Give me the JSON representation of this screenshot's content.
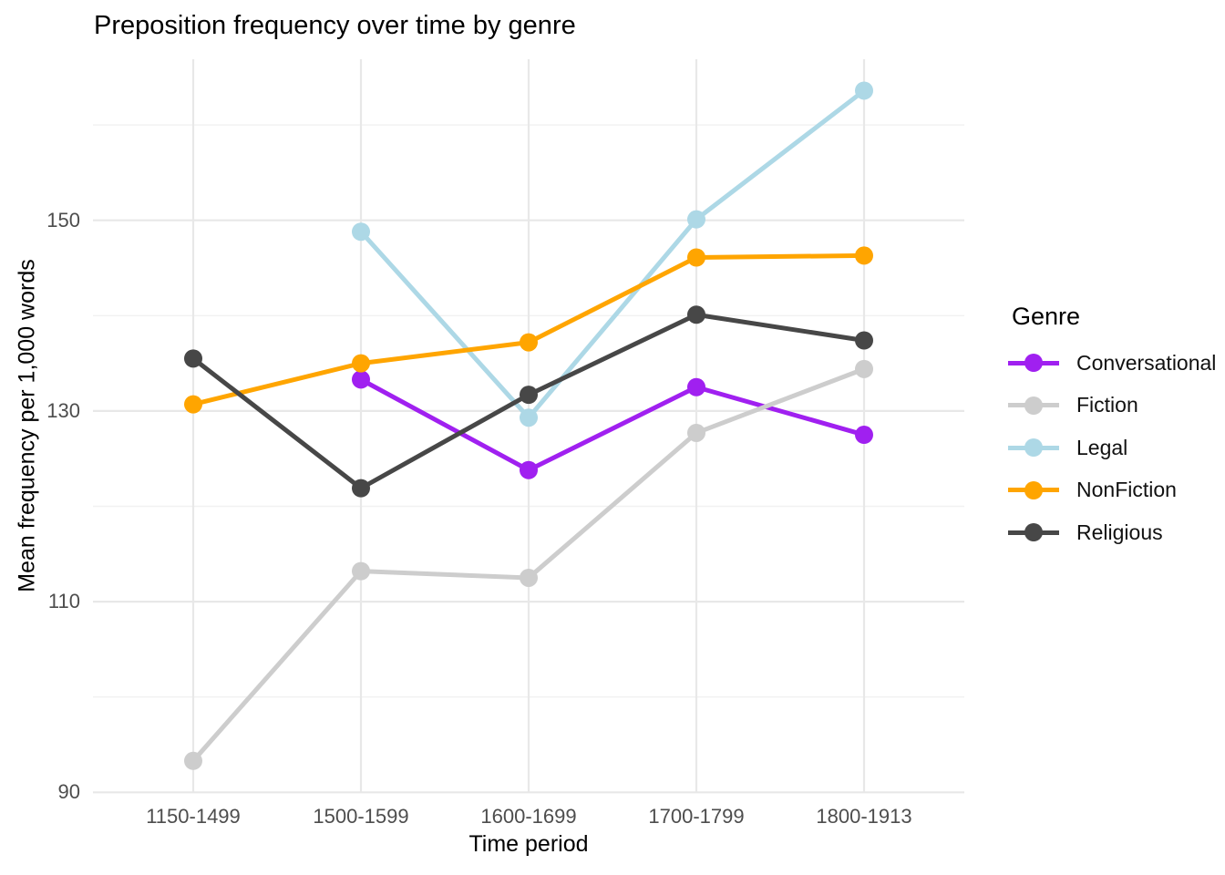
{
  "chart_data": {
    "type": "line",
    "title": "Preposition frequency over time by genre",
    "xlabel": "Time period",
    "ylabel": "Mean frequency per 1,000 words",
    "categories": [
      "1150-1499",
      "1500-1599",
      "1600-1699",
      "1700-1799",
      "1800-1913"
    ],
    "series": [
      {
        "name": "Conversational",
        "color": "#A020F0",
        "values": [
          null,
          133.3,
          123.8,
          132.5,
          127.5
        ]
      },
      {
        "name": "Fiction",
        "color": "#CDCDCD",
        "values": [
          93.3,
          113.2,
          112.5,
          127.7,
          134.4
        ]
      },
      {
        "name": "Legal",
        "color": "#ADD8E6",
        "values": [
          null,
          148.8,
          129.3,
          150.1,
          163.6
        ]
      },
      {
        "name": "NonFiction",
        "color": "#FFA500",
        "values": [
          130.7,
          135.0,
          137.2,
          146.1,
          146.3
        ]
      },
      {
        "name": "Religious",
        "color": "#474747",
        "values": [
          135.5,
          121.9,
          131.7,
          140.1,
          137.4
        ]
      }
    ],
    "y_axis": {
      "ticks": [
        90,
        110,
        130,
        150
      ],
      "minor_ticks": [
        100,
        120,
        140,
        160
      ],
      "ylim": [
        90,
        167
      ]
    },
    "legend": {
      "title": "Genre",
      "position": "right"
    },
    "grid": true,
    "style_colors": {
      "grid_major": "#E8E8E8",
      "grid_minor": "#F1F1F1",
      "axis_text": "#4D4D4D",
      "background": "#FFFFFF"
    }
  }
}
